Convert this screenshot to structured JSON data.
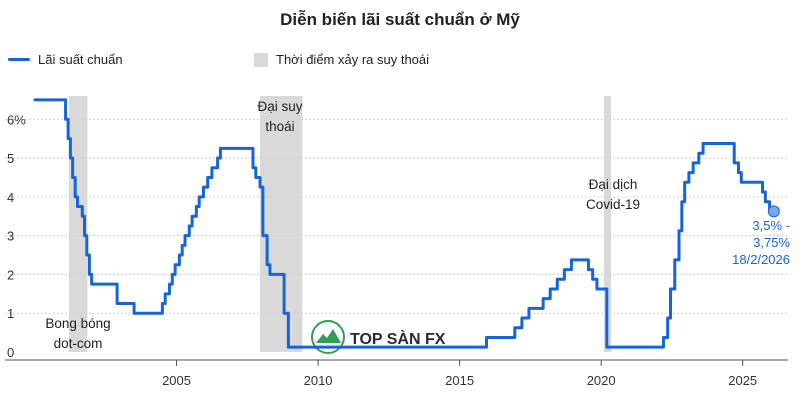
{
  "chart_data": {
    "type": "line",
    "title": "Diễn biến lãi suất chuẩn ở Mỹ",
    "legend": [
      {
        "label": "Lãi suất chuẩn",
        "kind": "line",
        "color": "#1565d8"
      },
      {
        "label": "Thời điểm xảy ra suy thoái",
        "kind": "band",
        "color": "#d9d9d9"
      }
    ],
    "legend_placement": "top-left",
    "xlim": [
      2000.0,
      2026.6
    ],
    "ylim": [
      0,
      6.6
    ],
    "x_ticks": [
      {
        "value": 2005,
        "label": "2005"
      },
      {
        "value": 2010,
        "label": "2010"
      },
      {
        "value": 2015,
        "label": "2015"
      },
      {
        "value": 2020,
        "label": "2020"
      },
      {
        "value": 2025,
        "label": "2025"
      }
    ],
    "y_ticks": [
      {
        "value": 0,
        "label": "0"
      },
      {
        "value": 1,
        "label": "1"
      },
      {
        "value": 2,
        "label": "2"
      },
      {
        "value": 3,
        "label": "3"
      },
      {
        "value": 4,
        "label": "4"
      },
      {
        "value": 5,
        "label": "5"
      },
      {
        "value": 6,
        "label": "6%"
      }
    ],
    "grid": "horizontal",
    "recessions": [
      {
        "start": 2001.2,
        "end": 2001.85,
        "label": "Bong bóng dot-com"
      },
      {
        "start": 2007.95,
        "end": 2009.45,
        "label": "Đại suy thoái"
      },
      {
        "start": 2020.1,
        "end": 2020.35,
        "label": "Đại dịch Covid-19"
      }
    ],
    "series": [
      {
        "name": "Lãi suất chuẩn",
        "color": "#1565d8",
        "step": true,
        "points": [
          [
            2000.0,
            6.5
          ],
          [
            2001.0,
            6.5
          ],
          [
            2001.08,
            6.0
          ],
          [
            2001.17,
            5.5
          ],
          [
            2001.25,
            5.0
          ],
          [
            2001.33,
            4.5
          ],
          [
            2001.42,
            4.0
          ],
          [
            2001.5,
            3.75
          ],
          [
            2001.67,
            3.5
          ],
          [
            2001.75,
            3.0
          ],
          [
            2001.83,
            2.5
          ],
          [
            2001.92,
            2.0
          ],
          [
            2002.0,
            1.75
          ],
          [
            2002.9,
            1.25
          ],
          [
            2003.5,
            1.0
          ],
          [
            2004.5,
            1.25
          ],
          [
            2004.6,
            1.5
          ],
          [
            2004.75,
            1.75
          ],
          [
            2004.85,
            2.0
          ],
          [
            2004.95,
            2.25
          ],
          [
            2005.1,
            2.5
          ],
          [
            2005.2,
            2.75
          ],
          [
            2005.3,
            3.0
          ],
          [
            2005.45,
            3.25
          ],
          [
            2005.55,
            3.5
          ],
          [
            2005.7,
            3.75
          ],
          [
            2005.8,
            4.0
          ],
          [
            2005.95,
            4.25
          ],
          [
            2006.1,
            4.5
          ],
          [
            2006.25,
            4.75
          ],
          [
            2006.45,
            5.0
          ],
          [
            2006.55,
            5.25
          ],
          [
            2007.7,
            4.75
          ],
          [
            2007.8,
            4.5
          ],
          [
            2007.95,
            4.25
          ],
          [
            2008.05,
            3.0
          ],
          [
            2008.2,
            2.25
          ],
          [
            2008.3,
            2.0
          ],
          [
            2008.8,
            1.0
          ],
          [
            2008.95,
            0.125
          ],
          [
            2015.95,
            0.375
          ],
          [
            2016.95,
            0.625
          ],
          [
            2017.2,
            0.875
          ],
          [
            2017.45,
            1.125
          ],
          [
            2017.95,
            1.375
          ],
          [
            2018.2,
            1.625
          ],
          [
            2018.45,
            1.875
          ],
          [
            2018.7,
            2.125
          ],
          [
            2018.95,
            2.375
          ],
          [
            2019.55,
            2.125
          ],
          [
            2019.7,
            1.875
          ],
          [
            2019.85,
            1.625
          ],
          [
            2020.2,
            0.125
          ],
          [
            2022.2,
            0.375
          ],
          [
            2022.35,
            0.875
          ],
          [
            2022.45,
            1.625
          ],
          [
            2022.6,
            2.375
          ],
          [
            2022.75,
            3.125
          ],
          [
            2022.85,
            3.875
          ],
          [
            2022.95,
            4.375
          ],
          [
            2023.1,
            4.625
          ],
          [
            2023.25,
            4.875
          ],
          [
            2023.45,
            5.125
          ],
          [
            2023.6,
            5.375
          ],
          [
            2024.7,
            4.875
          ],
          [
            2024.85,
            4.625
          ],
          [
            2024.95,
            4.375
          ],
          [
            2025.7,
            4.125
          ],
          [
            2025.8,
            3.875
          ],
          [
            2025.95,
            3.625
          ],
          [
            2026.15,
            3.625
          ]
        ]
      }
    ],
    "end_point": {
      "x": 2026.1,
      "y": 3.625,
      "lines": [
        "3,5% -",
        "3,75%",
        "18/2/2026"
      ]
    }
  },
  "watermark": {
    "text": "TOP SÀN FX"
  }
}
